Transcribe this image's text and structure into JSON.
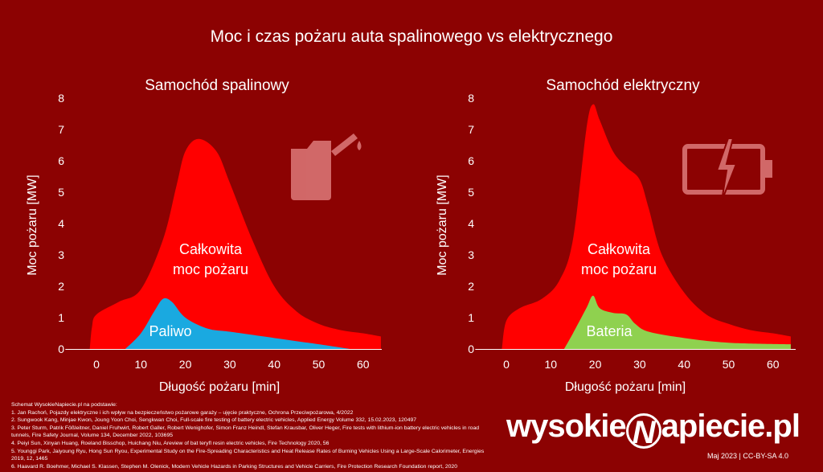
{
  "title": "Moc i czas pożaru auta spalinowego vs elektrycznego",
  "colors": {
    "background": "#8c0202",
    "total": "#ff0000",
    "fuel": "#1aa9e0",
    "battery": "#8fd14f",
    "icon": "#e88a8a"
  },
  "chart_data": [
    {
      "type": "area",
      "title": "Samochód spalinowy",
      "xlabel": "Długość  pożaru [min]",
      "ylabel": "Moc  pożaru [MW]",
      "xlim": [
        -7,
        64
      ],
      "ylim": [
        0,
        8
      ],
      "xticks": [
        0,
        10,
        20,
        30,
        40,
        50,
        60
      ],
      "yticks": [
        0,
        1,
        2,
        3,
        4,
        5,
        6,
        7,
        8
      ],
      "series": [
        {
          "name": "Całkowita moc pożaru",
          "label_lines": [
            "Całkowita",
            "moc pożaru"
          ],
          "color": "#ff0000",
          "x": [
            -1.5,
            -1,
            0,
            5,
            10,
            15,
            18,
            20,
            23,
            27,
            30,
            35,
            40,
            45,
            50,
            55,
            60,
            64
          ],
          "y": [
            0,
            0.7,
            1.1,
            1.5,
            1.9,
            3.5,
            5.2,
            6.3,
            6.7,
            6.3,
            5.3,
            3.5,
            2.0,
            1.2,
            0.8,
            0.6,
            0.5,
            0.4
          ]
        },
        {
          "name": "Paliwo",
          "label_lines": [
            "Paliwo"
          ],
          "color": "#1aa9e0",
          "x": [
            6.5,
            10,
            13,
            15,
            17,
            20,
            25,
            30,
            40,
            50,
            57
          ],
          "y": [
            0,
            0.5,
            1.2,
            1.6,
            1.5,
            1.0,
            0.65,
            0.55,
            0.35,
            0.15,
            0
          ]
        }
      ],
      "icon": "fuel-canister-icon"
    },
    {
      "type": "area",
      "title": "Samochód elektryczny",
      "xlabel": "Długość  pożaru [min]",
      "ylabel": "Moc  pożaru [MW]",
      "xlim": [
        -7,
        64
      ],
      "ylim": [
        0,
        8
      ],
      "xticks": [
        0,
        10,
        20,
        30,
        40,
        50,
        60
      ],
      "yticks": [
        0,
        1,
        2,
        3,
        4,
        5,
        6,
        7,
        8
      ],
      "series": [
        {
          "name": "Całkowita moc pożaru",
          "label_lines": [
            "Całkowita",
            "moc pożaru"
          ],
          "color": "#ff0000",
          "x": [
            -1,
            0,
            3,
            8,
            12,
            15,
            18,
            19.5,
            21,
            24,
            27,
            30,
            32,
            35,
            40,
            45,
            50,
            55,
            60,
            64
          ],
          "y": [
            0,
            0.9,
            1.3,
            1.6,
            2.2,
            3.5,
            7.0,
            7.8,
            7.3,
            6.3,
            5.8,
            5.4,
            4.5,
            3.0,
            1.8,
            1.1,
            0.8,
            0.6,
            0.5,
            0.4
          ]
        },
        {
          "name": "Bateria",
          "label_lines": [
            "Bateria"
          ],
          "color": "#8fd14f",
          "x": [
            13,
            15,
            18,
            19.5,
            21,
            24,
            27,
            29,
            32,
            40,
            50,
            64
          ],
          "y": [
            0,
            0.5,
            1.3,
            1.7,
            1.3,
            1.15,
            1.1,
            0.8,
            0.55,
            0.35,
            0.2,
            0.15
          ]
        }
      ],
      "icon": "battery-lightning-icon"
    }
  ],
  "references": {
    "heading": "Schemat WysokieNapiecie.pl na podstawie:",
    "items": [
      "1.   Jan Rachoń, Pojazdy elektryczne i ich wpływ na bezpieczeństwo pożarowe garaży – ujęcie praktyczne, Ochrona Przeciwpożarowa, 4/2022",
      "2.   Sungwook Kang, Minjae Kwon, Joung Yoon Choi, Sengkwan Choi, Full-scale fire testing of battery electric vehicles, Applied Energy Volume 332, 15.02.2023, 120497",
      "3.   Peter Sturm, Patrik Fößleitner, Daniel Fruhwirt, Robert Galler, Robert Wenighofer, Simon Franz Heindl, Stefan Krausbar, Oliver Heger, Fire tests with lithium-ion battery electric vehicles in road",
      "      tunnels, Fire Safety Journal, Volume 134, December 2022, 103695",
      "4.   Peiyi Sun, Xinyan Huang, Roeland Bisschop, Huichang Niu, Areview of bat teryfl resin electric vehicles, Fire Technology 2020, 56",
      "5.   Younggi Park, Jaiyoung Ryu, Hong Sun Ryou, Experimental Study on the Fire-Spreading Characteristics and Heat Release Rates of Burning Vehicles Using a Large-Scale Calorimeter, Energies",
      "      2019, 12, 1465",
      "6.   Haavard R. Boehmer, Michael S. Klassen, Stephen M. Olenick, Modern Vehicle Hazards in Parking Structures and Vehicle Carriers, Fire Protection Research Foundation report, 2020"
    ]
  },
  "logo": {
    "left": "wysokie",
    "right": "apiecie.pl"
  },
  "license": "Maj 2023  |  CC-BY-SA 4.0"
}
